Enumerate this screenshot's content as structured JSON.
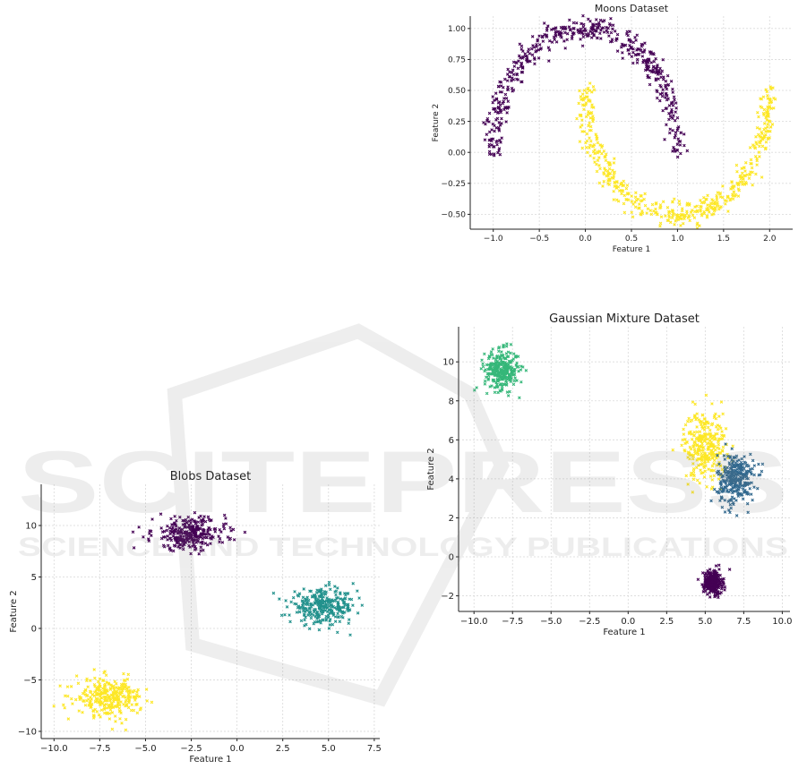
{
  "watermark": {
    "line1": "SCITEPRESS",
    "line2": "SCIENCE AND TECHNOLOGY PUBLICATIONS"
  },
  "chart_data": [
    {
      "id": "moons",
      "type": "scatter",
      "title": "Moons Dataset",
      "xlabel": "Feature 1",
      "ylabel": "Feature 2",
      "xlim": [
        -1.25,
        2.25
      ],
      "ylim": [
        -0.62,
        1.1
      ],
      "xticks": [
        -1.0,
        -0.5,
        0.0,
        0.5,
        1.0,
        1.5,
        2.0
      ],
      "xtick_labels": [
        "−1.0",
        "−0.5",
        "0.0",
        "0.5",
        "1.0",
        "1.5",
        "2.0"
      ],
      "yticks": [
        1.0,
        0.75,
        0.5,
        0.25,
        0.0,
        -0.25,
        -0.5
      ],
      "ytick_labels": [
        "1.00",
        "0.75",
        "0.50",
        "0.25",
        "0.00",
        "−0.25",
        "−0.50"
      ],
      "grid": true,
      "marker": "x",
      "series": [
        {
          "color": "#440154",
          "shape": "upper-arc",
          "center": [
            0.0,
            0.0
          ],
          "radius": 1.0,
          "noise": 0.05,
          "n": 500
        },
        {
          "color": "#fde725",
          "shape": "lower-arc",
          "center": [
            1.0,
            0.5
          ],
          "radius": 1.0,
          "noise": 0.05,
          "n": 500
        }
      ]
    },
    {
      "id": "gmm",
      "type": "scatter",
      "title": "Gaussian Mixture Dataset",
      "xlabel": "Feature 1",
      "ylabel": "Feature 2",
      "xlim": [
        -11.0,
        10.5
      ],
      "ylim": [
        -2.8,
        11.8
      ],
      "xticks": [
        -10.0,
        -7.5,
        -5.0,
        -2.5,
        0.0,
        2.5,
        5.0,
        7.5,
        10.0
      ],
      "xtick_labels": [
        "−10.0",
        "−7.5",
        "−5.0",
        "−2.5",
        "0.0",
        "2.5",
        "5.0",
        "7.5",
        "10.0"
      ],
      "yticks": [
        10,
        8,
        6,
        4,
        2,
        0,
        -2
      ],
      "ytick_labels": [
        "10",
        "8",
        "6",
        "4",
        "2",
        "0",
        "−2"
      ],
      "grid": true,
      "marker": "x",
      "series": [
        {
          "color": "#35b779",
          "center": [
            -8.2,
            9.6
          ],
          "spread": [
            0.55,
            0.5
          ],
          "n": 300
        },
        {
          "color": "#fde725",
          "center": [
            5.0,
            5.7
          ],
          "spread": [
            0.7,
            0.9
          ],
          "n": 300
        },
        {
          "color": "#31688e",
          "center": [
            7.0,
            4.0
          ],
          "spread": [
            0.6,
            0.65
          ],
          "n": 300
        },
        {
          "color": "#440154",
          "center": [
            5.5,
            -1.3
          ],
          "spread": [
            0.3,
            0.3
          ],
          "n": 300
        }
      ]
    },
    {
      "id": "blobs",
      "type": "scatter",
      "title": "Blobs Dataset",
      "xlabel": "Feature 1",
      "ylabel": "Feature 2",
      "xlim": [
        -10.7,
        7.8
      ],
      "ylim": [
        -10.7,
        14.0
      ],
      "xticks": [
        -10.0,
        -7.5,
        -5.0,
        -2.5,
        0.0,
        2.5,
        5.0,
        7.5
      ],
      "xtick_labels": [
        "−10.0",
        "−7.5",
        "−5.0",
        "−2.5",
        "0.0",
        "2.5",
        "5.0",
        "7.5"
      ],
      "yticks": [
        10,
        5,
        0,
        -5,
        -10
      ],
      "ytick_labels": [
        "10",
        "5",
        "0",
        "−5",
        "−10"
      ],
      "grid": true,
      "marker": "x",
      "series": [
        {
          "color": "#440154",
          "center": [
            -2.6,
            9.2
          ],
          "spread": [
            1.0,
            0.8
          ],
          "n": 300
        },
        {
          "color": "#21918c",
          "center": [
            4.7,
            2.1
          ],
          "spread": [
            0.9,
            0.8
          ],
          "n": 300
        },
        {
          "color": "#fde725",
          "center": [
            -7.0,
            -6.7
          ],
          "spread": [
            0.9,
            0.9
          ],
          "n": 300
        }
      ]
    }
  ]
}
